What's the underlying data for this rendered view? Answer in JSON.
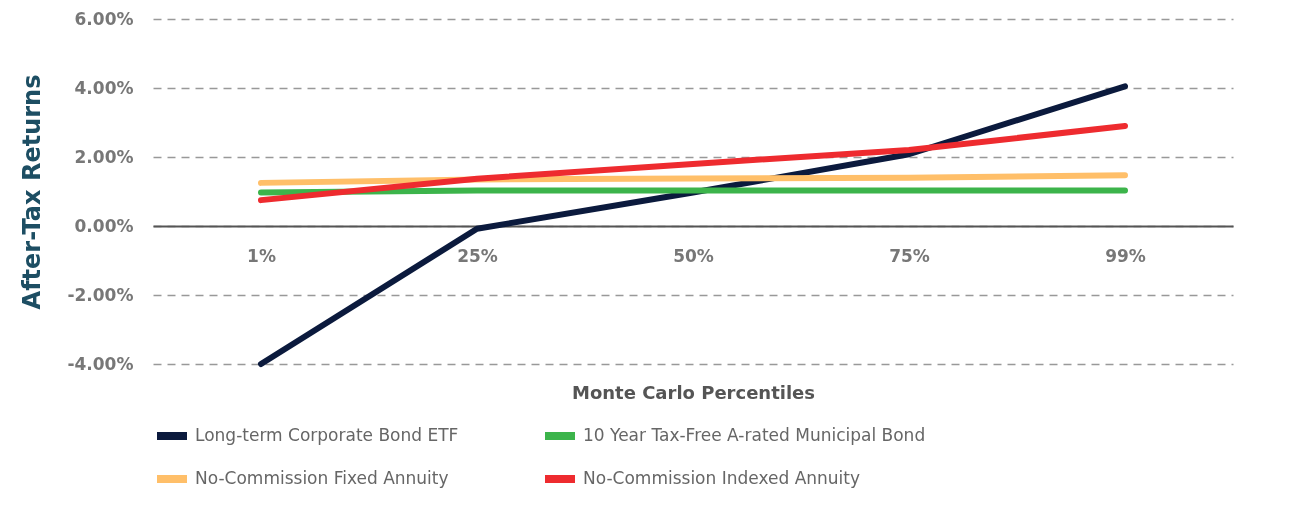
{
  "chart_data": {
    "type": "line",
    "xlabel": "Monte Carlo Percentiles",
    "ylabel": "After-Tax Returns",
    "categories": [
      "1%",
      "25%",
      "50%",
      "75%",
      "99%"
    ],
    "series": [
      {
        "name": "Long-term Corporate Bond ETF",
        "color": "#0b1a3d",
        "values": [
          -4.0,
          -0.08,
          0.97,
          2.08,
          4.05
        ]
      },
      {
        "name": "10 Year Tax-Free A-rated Municipal Bond",
        "color": "#3cb44b",
        "values": [
          0.97,
          1.03,
          1.03,
          1.03,
          1.03
        ]
      },
      {
        "name": "No-Commission Fixed Annuity",
        "color": "#ffbf69",
        "values": [
          1.25,
          1.35,
          1.38,
          1.4,
          1.47
        ]
      },
      {
        "name": "No-Commission Indexed Annuity",
        "color": "#ee2b2f",
        "values": [
          0.75,
          1.37,
          1.8,
          2.2,
          2.9
        ]
      }
    ],
    "ylim": [
      -4,
      6
    ],
    "yticks": [
      {
        "value": -4,
        "label": "-4.00%"
      },
      {
        "value": -2,
        "label": "-2.00%"
      },
      {
        "value": 0,
        "label": "0.00%"
      },
      {
        "value": 2,
        "label": "2.00%"
      },
      {
        "value": 4,
        "label": "4.00%"
      },
      {
        "value": 6,
        "label": "6.00%"
      }
    ],
    "grid": "y",
    "legend": "bottom"
  }
}
